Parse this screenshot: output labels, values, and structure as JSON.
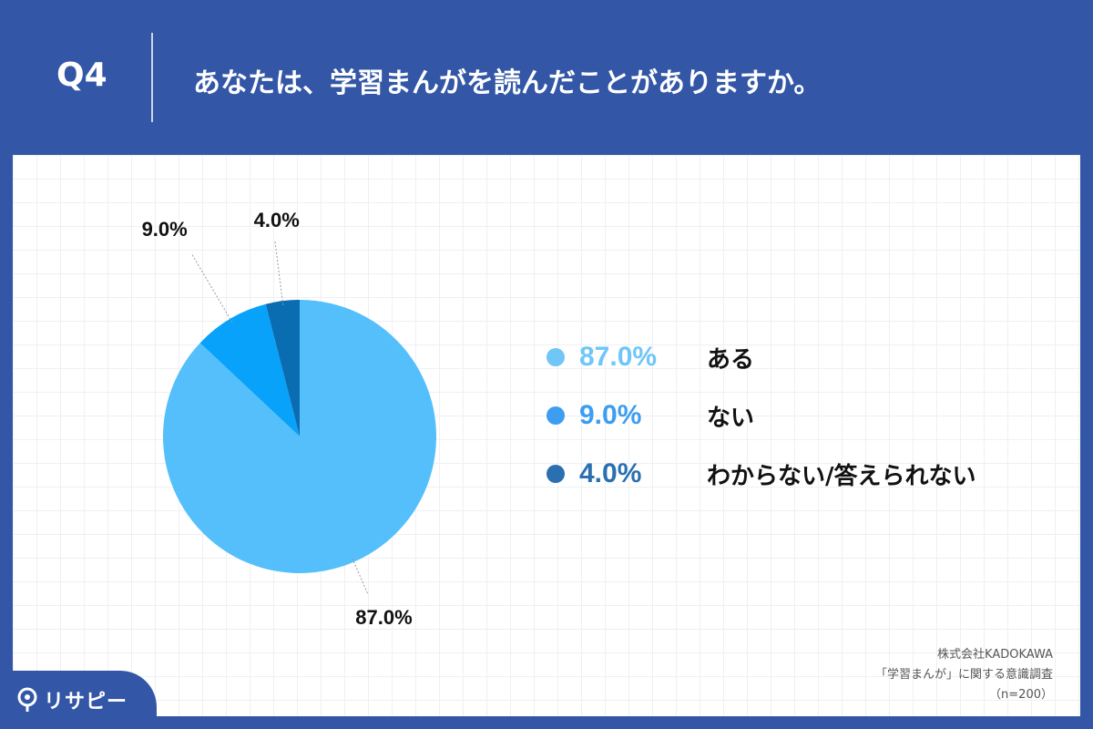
{
  "header": {
    "question_number": "Q4",
    "question_text": "あなたは、学習まんがを読んだことがありますか。"
  },
  "chart_data": {
    "type": "pie",
    "categories": [
      "ある",
      "ない",
      "わからない/答えられない"
    ],
    "values": [
      87.0,
      9.0,
      4.0
    ],
    "value_labels": [
      "87.0%",
      "9.0%",
      "4.0%"
    ],
    "colors": [
      "#55bffb",
      "#08a2fb",
      "#0a6db1"
    ],
    "legend_colors": [
      "#6fc6f7",
      "#3d9df0",
      "#2a6fb0"
    ],
    "start_angle_deg": 0,
    "direction": "clockwise",
    "legend_placement": "right"
  },
  "source": {
    "line1": "株式会社KADOKAWA",
    "line2": "「学習まんが」に関する意識調査",
    "line3": "（n=200）"
  },
  "brand": {
    "name": "リサピー"
  }
}
